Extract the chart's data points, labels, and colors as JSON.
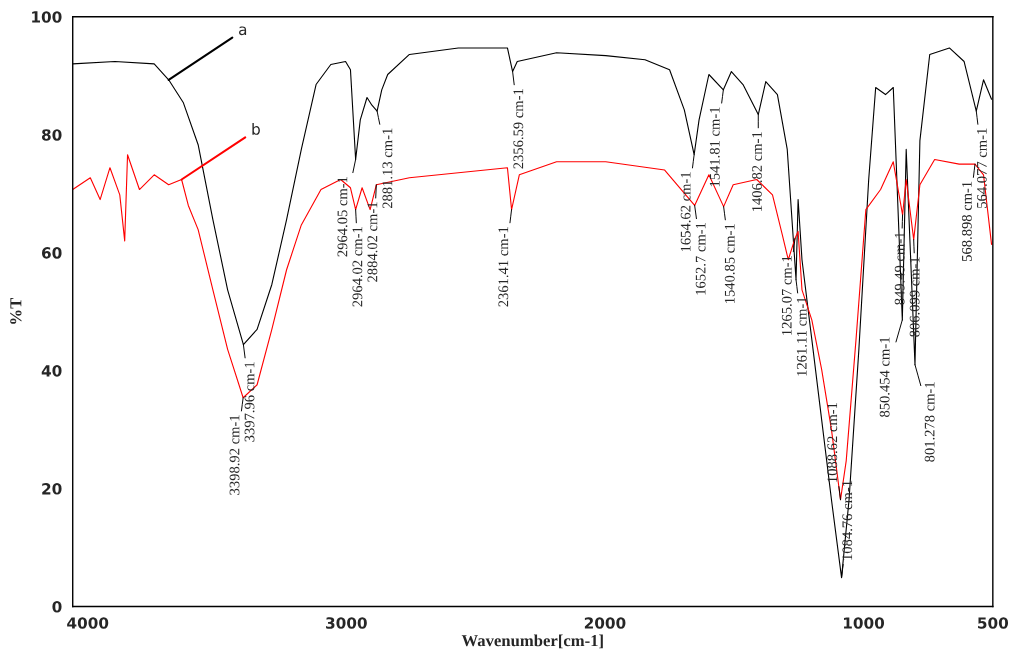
{
  "chart_data": {
    "type": "line",
    "xlabel": "Wavenumber[cm-1]",
    "ylabel": "%T",
    "xlim": [
      4058,
      500
    ],
    "ylim": [
      0,
      100
    ],
    "xticks": [
      4000,
      3000,
      2000,
      1000,
      500
    ],
    "yticks": [
      0,
      20,
      40,
      60,
      80,
      100
    ],
    "grid": false,
    "legend": false,
    "marker": "none",
    "line_style": "solid",
    "series": [
      {
        "name": "a",
        "color": "#000000",
        "x": [
          4058,
          3895,
          3743,
          3687,
          3630,
          3573,
          3516,
          3459,
          3398,
          3345,
          3288,
          3231,
          3174,
          3117,
          3060,
          3003,
          2984,
          2964,
          2946,
          2920,
          2901,
          2881,
          2863,
          2840,
          2756,
          2567,
          2377,
          2357,
          2339,
          2187,
          1997,
          1845,
          1750,
          1693,
          1655,
          1636,
          1598,
          1542,
          1511,
          1466,
          1407,
          1378,
          1333,
          1295,
          1261,
          1253,
          1238,
          1200,
          1162,
          1124,
          1085,
          1056,
          1018,
          980,
          953,
          915,
          885,
          850,
          835,
          801,
          782,
          744,
          668,
          611,
          564,
          536,
          505
        ],
        "values": [
          92,
          92.4,
          92,
          89.3,
          85.4,
          78.3,
          65.6,
          53.7,
          44.4,
          47,
          54.6,
          65.6,
          77.5,
          88.5,
          91.9,
          92.4,
          91,
          75.8,
          82.5,
          86.3,
          85,
          84,
          87.6,
          90.2,
          93.6,
          94.7,
          94.7,
          90.7,
          92.4,
          93.9,
          93.4,
          92.7,
          91,
          84.2,
          76.6,
          82.5,
          90.2,
          87.6,
          90.7,
          88.5,
          83.4,
          89,
          86.8,
          77.5,
          55.4,
          69,
          58.8,
          45.3,
          31.7,
          18.1,
          4.9,
          18.1,
          43.6,
          72.4,
          88,
          86.8,
          88,
          48.6,
          77.5,
          41,
          79,
          93.6,
          94.7,
          92.4,
          84,
          89.3,
          86
        ]
      },
      {
        "name": "b",
        "color": "#ff0000",
        "x": [
          4058,
          3990,
          3952,
          3914,
          3876,
          3857,
          3846,
          3800,
          3743,
          3687,
          3637,
          3611,
          3573,
          3516,
          3459,
          3399,
          3345,
          3288,
          3231,
          3174,
          3098,
          3022,
          2984,
          2964,
          2939,
          2908,
          2884,
          2756,
          2377,
          2361,
          2331,
          2187,
          1997,
          1769,
          1653,
          1598,
          1541,
          1504,
          1413,
          1352,
          1314,
          1291,
          1265,
          1253,
          1238,
          1200,
          1162,
          1124,
          1089,
          1067,
          1029,
          991,
          934,
          885,
          849,
          835,
          806,
          782,
          725,
          630,
          569,
          536,
          505
        ],
        "values": [
          70.7,
          72.7,
          69,
          74.4,
          69.8,
          62,
          76.6,
          70.7,
          73.2,
          71.5,
          72.4,
          68,
          63.9,
          53.7,
          43.6,
          35.4,
          37.6,
          47,
          57.1,
          64.7,
          70.7,
          72.4,
          71,
          67.3,
          71,
          67.3,
          71.5,
          72.7,
          74.4,
          67.3,
          73.2,
          75.4,
          75.4,
          74,
          68,
          73.2,
          67.8,
          71.5,
          72.4,
          69.8,
          63,
          58.8,
          62.4,
          63.6,
          53.7,
          48.6,
          40.2,
          30,
          18.1,
          24.7,
          45.3,
          67.3,
          70.7,
          75.4,
          66.4,
          72.4,
          62.2,
          71.5,
          75.8,
          75,
          75,
          73.2,
          61.4
        ]
      }
    ],
    "annotations": [
      {
        "text": "3397.96 cm-1",
        "x": 3398,
        "y": 44.4
      },
      {
        "text": "3398.92 cm-1",
        "x": 3399,
        "y": 35.4
      },
      {
        "text": "2964.05 cm-1",
        "x": 2964,
        "y": 75.8
      },
      {
        "text": "2964.02 cm-1",
        "x": 2964,
        "y": 67.3
      },
      {
        "text": "2881.13 cm-1",
        "x": 2881,
        "y": 84
      },
      {
        "text": "2884.02 cm-1",
        "x": 2884,
        "y": 71.5
      },
      {
        "text": "2356.59 cm-1",
        "x": 2357,
        "y": 90.7
      },
      {
        "text": "2361.41 cm-1",
        "x": 2361,
        "y": 67.3
      },
      {
        "text": "1654.62 cm-1",
        "x": 1655,
        "y": 76.6
      },
      {
        "text": "1652.7 cm-1",
        "x": 1653,
        "y": 68
      },
      {
        "text": "1541.81 cm-1",
        "x": 1542,
        "y": 87.6
      },
      {
        "text": "1540.85 cm-1",
        "x": 1541,
        "y": 67.8
      },
      {
        "text": "1406.82 cm-1",
        "x": 1407,
        "y": 83.4
      },
      {
        "text": "1261.11 cm-1",
        "x": 1261,
        "y": 55.4
      },
      {
        "text": "1265.07 cm-1",
        "x": 1265,
        "y": 62.4
      },
      {
        "text": "1084.76 cm-1",
        "x": 1085,
        "y": 4.9
      },
      {
        "text": "1088.62 cm-1",
        "x": 1089,
        "y": 18.1
      },
      {
        "text": "850.454 cm-1",
        "x": 850,
        "y": 48.6
      },
      {
        "text": "849.49 cm-1",
        "x": 849,
        "y": 66.4
      },
      {
        "text": "801.278 cm-1",
        "x": 801,
        "y": 41
      },
      {
        "text": "806.099 cm-1",
        "x": 806,
        "y": 62.2
      },
      {
        "text": "564.077 cm-1",
        "x": 564,
        "y": 84
      },
      {
        "text": "568.898 cm-1",
        "x": 569,
        "y": 75
      }
    ]
  }
}
